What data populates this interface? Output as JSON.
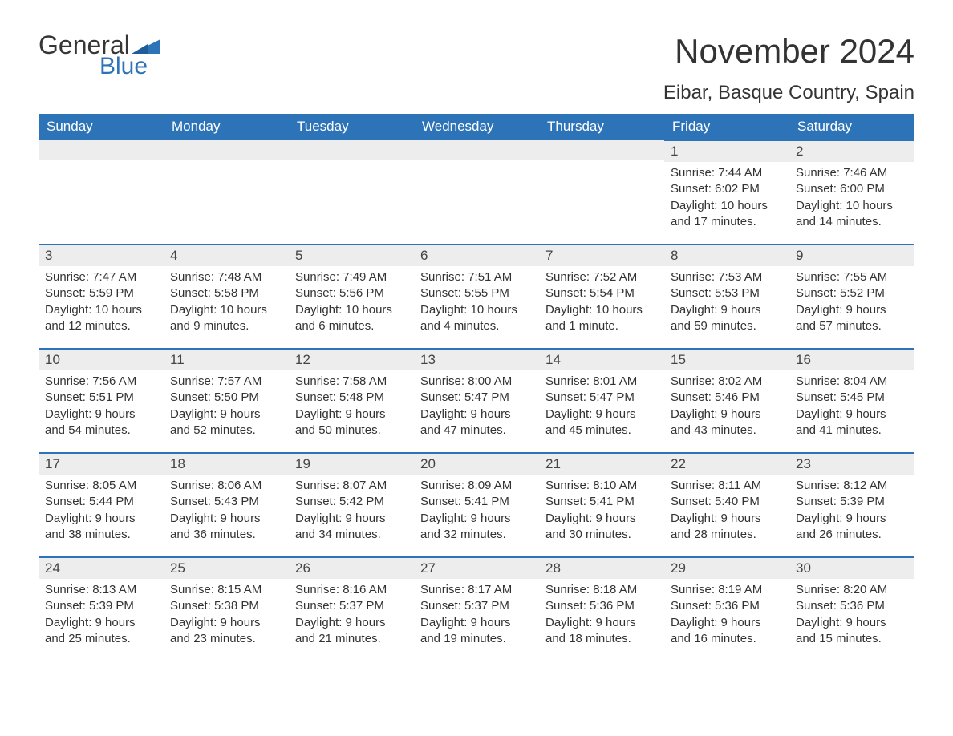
{
  "logo": {
    "word1": "General",
    "word2": "Blue"
  },
  "title": "November 2024",
  "subtitle": "Eibar, Basque Country, Spain",
  "colors": {
    "header_bg": "#2d73b7",
    "header_text": "#ffffff",
    "daynum_bg": "#ededed",
    "daynum_border": "#2d73b7",
    "body_text": "#333333",
    "page_bg": "#ffffff",
    "logo_blue": "#2d73b7",
    "logo_gray": "#363636"
  },
  "fonts": {
    "title_size_pt": 32,
    "subtitle_size_pt": 18,
    "header_size_pt": 13,
    "body_size_pt": 11
  },
  "weekday_headers": [
    "Sunday",
    "Monday",
    "Tuesday",
    "Wednesday",
    "Thursday",
    "Friday",
    "Saturday"
  ],
  "weeks": [
    [
      null,
      null,
      null,
      null,
      null,
      {
        "n": "1",
        "sunrise": "Sunrise: 7:44 AM",
        "sunset": "Sunset: 6:02 PM",
        "daylight": "Daylight: 10 hours and 17 minutes."
      },
      {
        "n": "2",
        "sunrise": "Sunrise: 7:46 AM",
        "sunset": "Sunset: 6:00 PM",
        "daylight": "Daylight: 10 hours and 14 minutes."
      }
    ],
    [
      {
        "n": "3",
        "sunrise": "Sunrise: 7:47 AM",
        "sunset": "Sunset: 5:59 PM",
        "daylight": "Daylight: 10 hours and 12 minutes."
      },
      {
        "n": "4",
        "sunrise": "Sunrise: 7:48 AM",
        "sunset": "Sunset: 5:58 PM",
        "daylight": "Daylight: 10 hours and 9 minutes."
      },
      {
        "n": "5",
        "sunrise": "Sunrise: 7:49 AM",
        "sunset": "Sunset: 5:56 PM",
        "daylight": "Daylight: 10 hours and 6 minutes."
      },
      {
        "n": "6",
        "sunrise": "Sunrise: 7:51 AM",
        "sunset": "Sunset: 5:55 PM",
        "daylight": "Daylight: 10 hours and 4 minutes."
      },
      {
        "n": "7",
        "sunrise": "Sunrise: 7:52 AM",
        "sunset": "Sunset: 5:54 PM",
        "daylight": "Daylight: 10 hours and 1 minute."
      },
      {
        "n": "8",
        "sunrise": "Sunrise: 7:53 AM",
        "sunset": "Sunset: 5:53 PM",
        "daylight": "Daylight: 9 hours and 59 minutes."
      },
      {
        "n": "9",
        "sunrise": "Sunrise: 7:55 AM",
        "sunset": "Sunset: 5:52 PM",
        "daylight": "Daylight: 9 hours and 57 minutes."
      }
    ],
    [
      {
        "n": "10",
        "sunrise": "Sunrise: 7:56 AM",
        "sunset": "Sunset: 5:51 PM",
        "daylight": "Daylight: 9 hours and 54 minutes."
      },
      {
        "n": "11",
        "sunrise": "Sunrise: 7:57 AM",
        "sunset": "Sunset: 5:50 PM",
        "daylight": "Daylight: 9 hours and 52 minutes."
      },
      {
        "n": "12",
        "sunrise": "Sunrise: 7:58 AM",
        "sunset": "Sunset: 5:48 PM",
        "daylight": "Daylight: 9 hours and 50 minutes."
      },
      {
        "n": "13",
        "sunrise": "Sunrise: 8:00 AM",
        "sunset": "Sunset: 5:47 PM",
        "daylight": "Daylight: 9 hours and 47 minutes."
      },
      {
        "n": "14",
        "sunrise": "Sunrise: 8:01 AM",
        "sunset": "Sunset: 5:47 PM",
        "daylight": "Daylight: 9 hours and 45 minutes."
      },
      {
        "n": "15",
        "sunrise": "Sunrise: 8:02 AM",
        "sunset": "Sunset: 5:46 PM",
        "daylight": "Daylight: 9 hours and 43 minutes."
      },
      {
        "n": "16",
        "sunrise": "Sunrise: 8:04 AM",
        "sunset": "Sunset: 5:45 PM",
        "daylight": "Daylight: 9 hours and 41 minutes."
      }
    ],
    [
      {
        "n": "17",
        "sunrise": "Sunrise: 8:05 AM",
        "sunset": "Sunset: 5:44 PM",
        "daylight": "Daylight: 9 hours and 38 minutes."
      },
      {
        "n": "18",
        "sunrise": "Sunrise: 8:06 AM",
        "sunset": "Sunset: 5:43 PM",
        "daylight": "Daylight: 9 hours and 36 minutes."
      },
      {
        "n": "19",
        "sunrise": "Sunrise: 8:07 AM",
        "sunset": "Sunset: 5:42 PM",
        "daylight": "Daylight: 9 hours and 34 minutes."
      },
      {
        "n": "20",
        "sunrise": "Sunrise: 8:09 AM",
        "sunset": "Sunset: 5:41 PM",
        "daylight": "Daylight: 9 hours and 32 minutes."
      },
      {
        "n": "21",
        "sunrise": "Sunrise: 8:10 AM",
        "sunset": "Sunset: 5:41 PM",
        "daylight": "Daylight: 9 hours and 30 minutes."
      },
      {
        "n": "22",
        "sunrise": "Sunrise: 8:11 AM",
        "sunset": "Sunset: 5:40 PM",
        "daylight": "Daylight: 9 hours and 28 minutes."
      },
      {
        "n": "23",
        "sunrise": "Sunrise: 8:12 AM",
        "sunset": "Sunset: 5:39 PM",
        "daylight": "Daylight: 9 hours and 26 minutes."
      }
    ],
    [
      {
        "n": "24",
        "sunrise": "Sunrise: 8:13 AM",
        "sunset": "Sunset: 5:39 PM",
        "daylight": "Daylight: 9 hours and 25 minutes."
      },
      {
        "n": "25",
        "sunrise": "Sunrise: 8:15 AM",
        "sunset": "Sunset: 5:38 PM",
        "daylight": "Daylight: 9 hours and 23 minutes."
      },
      {
        "n": "26",
        "sunrise": "Sunrise: 8:16 AM",
        "sunset": "Sunset: 5:37 PM",
        "daylight": "Daylight: 9 hours and 21 minutes."
      },
      {
        "n": "27",
        "sunrise": "Sunrise: 8:17 AM",
        "sunset": "Sunset: 5:37 PM",
        "daylight": "Daylight: 9 hours and 19 minutes."
      },
      {
        "n": "28",
        "sunrise": "Sunrise: 8:18 AM",
        "sunset": "Sunset: 5:36 PM",
        "daylight": "Daylight: 9 hours and 18 minutes."
      },
      {
        "n": "29",
        "sunrise": "Sunrise: 8:19 AM",
        "sunset": "Sunset: 5:36 PM",
        "daylight": "Daylight: 9 hours and 16 minutes."
      },
      {
        "n": "30",
        "sunrise": "Sunrise: 8:20 AM",
        "sunset": "Sunset: 5:36 PM",
        "daylight": "Daylight: 9 hours and 15 minutes."
      }
    ]
  ]
}
